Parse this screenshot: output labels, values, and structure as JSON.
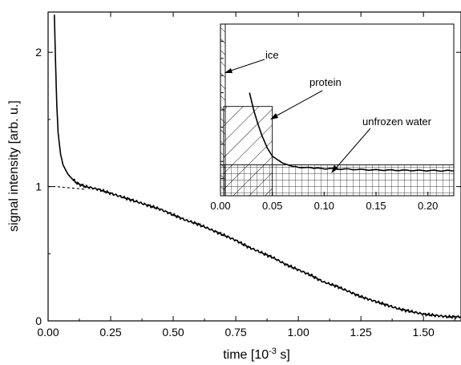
{
  "chart_data": {
    "type": "line",
    "xlabel": "time [10",
    "xlabel_exp": "-3",
    "xlabel_tail": " s]",
    "ylabel": "signal intensity [arb. u.]",
    "xlim": [
      0,
      1.65
    ],
    "ylim": [
      0,
      2.3
    ],
    "xticks": [
      0,
      0.25,
      0.5,
      0.75,
      1.0,
      1.25,
      1.5
    ],
    "xtick_labels": [
      "0.00",
      "0.25",
      "0.50",
      "0.75",
      "1.00",
      "1.25",
      "1.50"
    ],
    "yticks": [
      0,
      1,
      2
    ],
    "ytick_labels": [
      "0",
      "1",
      "2"
    ],
    "series": [
      {
        "style": "solid",
        "x": [
          0.025,
          0.03,
          0.035,
          0.04,
          0.05,
          0.06,
          0.08,
          0.1,
          0.12,
          0.15,
          0.2,
          0.25,
          0.3,
          0.35,
          0.4,
          0.45,
          0.5,
          0.55,
          0.6,
          0.65,
          0.7,
          0.75,
          0.8,
          0.85,
          0.9,
          0.95,
          1.0,
          1.05,
          1.1,
          1.15,
          1.2,
          1.25,
          1.3,
          1.35,
          1.4,
          1.45,
          1.5,
          1.55,
          1.6,
          1.65
        ],
        "y": [
          2.28,
          1.9,
          1.6,
          1.4,
          1.24,
          1.16,
          1.09,
          1.05,
          1.02,
          1.0,
          0.98,
          0.95,
          0.92,
          0.89,
          0.86,
          0.83,
          0.79,
          0.75,
          0.72,
          0.68,
          0.64,
          0.6,
          0.55,
          0.51,
          0.47,
          0.42,
          0.38,
          0.34,
          0.29,
          0.26,
          0.22,
          0.18,
          0.15,
          0.12,
          0.09,
          0.07,
          0.05,
          0.04,
          0.03,
          0.03
        ]
      },
      {
        "style": "dashed",
        "x": [
          0.0,
          0.03,
          0.06,
          0.09,
          0.12,
          0.15
        ],
        "y": [
          1.0,
          1.0,
          0.995,
          0.99,
          0.985,
          0.98
        ]
      }
    ],
    "inset": {
      "xlim": [
        0,
        0.225
      ],
      "xticks": [
        0.0,
        0.05,
        0.1,
        0.15,
        0.2
      ],
      "xtick_labels": [
        "0.00",
        "0.05",
        "0.10",
        "0.15",
        "0.20"
      ],
      "annotations": [
        "ice",
        "protein",
        "unfrozen water"
      ],
      "curve": {
        "x": [
          0.028,
          0.032,
          0.036,
          0.04,
          0.045,
          0.05,
          0.06,
          0.07,
          0.09,
          0.12,
          0.15,
          0.18,
          0.21,
          0.225
        ],
        "y": [
          0.6,
          0.5,
          0.42,
          0.35,
          0.28,
          0.23,
          0.19,
          0.17,
          0.16,
          0.155,
          0.15,
          0.148,
          0.146,
          0.145
        ]
      },
      "regions": [
        {
          "name": "ice",
          "x": [
            0.0,
            0.003
          ],
          "y": [
            0,
            1
          ]
        },
        {
          "name": "protein",
          "x": [
            0.003,
            0.05
          ],
          "y": [
            0,
            0.52
          ]
        },
        {
          "name": "unfrozen water",
          "x": [
            0.0,
            0.225
          ],
          "y": [
            0,
            0.18
          ]
        }
      ]
    }
  }
}
